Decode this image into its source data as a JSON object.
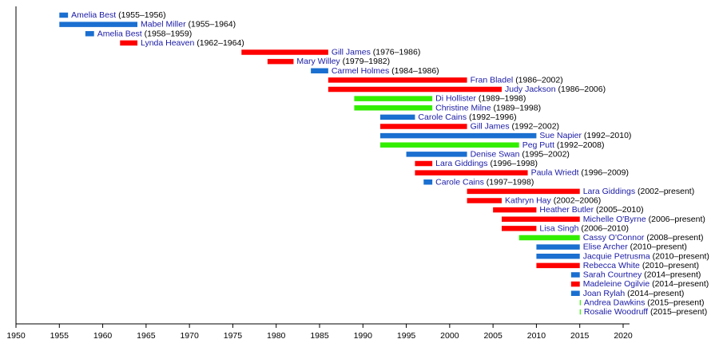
{
  "chart_data": {
    "type": "timeline",
    "xlim": [
      1950,
      2020
    ],
    "xticks": [
      1950,
      1955,
      1960,
      1965,
      1970,
      1975,
      1980,
      1985,
      1990,
      1995,
      2000,
      2005,
      2010,
      2015,
      2020
    ],
    "rows": [
      {
        "name": "Amelia Best",
        "period": "(1955–1956)",
        "start": 1955,
        "end": 1956,
        "color": "#1a6fd0"
      },
      {
        "name": "Mabel Miller",
        "period": "(1955–1964)",
        "start": 1955,
        "end": 1964,
        "color": "#1a6fd0"
      },
      {
        "name": "Amelia Best",
        "period": "(1958–1959)",
        "start": 1958,
        "end": 1959,
        "color": "#1a6fd0"
      },
      {
        "name": "Lynda Heaven",
        "period": "(1962–1964)",
        "start": 1962,
        "end": 1964,
        "color": "#ff0000"
      },
      {
        "name": "Gill James",
        "period": "(1976–1986)",
        "start": 1976,
        "end": 1986,
        "color": "#ff0000"
      },
      {
        "name": "Mary Willey",
        "period": "(1979–1982)",
        "start": 1979,
        "end": 1982,
        "color": "#ff0000"
      },
      {
        "name": "Carmel Holmes",
        "period": "(1984–1986)",
        "start": 1984,
        "end": 1986,
        "color": "#1a6fd0"
      },
      {
        "name": "Fran Bladel",
        "period": "(1986–2002)",
        "start": 1986,
        "end": 2002,
        "color": "#ff0000"
      },
      {
        "name": "Judy Jackson",
        "period": "(1986–2006)",
        "start": 1986,
        "end": 2006,
        "color": "#ff0000"
      },
      {
        "name": "Di Hollister",
        "period": "(1989–1998)",
        "start": 1989,
        "end": 1998,
        "color": "#33ee00"
      },
      {
        "name": "Christine Milne",
        "period": "(1989–1998)",
        "start": 1989,
        "end": 1998,
        "color": "#33ee00"
      },
      {
        "name": "Carole Cains",
        "period": "(1992–1996)",
        "start": 1992,
        "end": 1996,
        "color": "#1a6fd0"
      },
      {
        "name": "Gill James",
        "period": "(1992–2002)",
        "start": 1992,
        "end": 2002,
        "color": "#ff0000"
      },
      {
        "name": "Sue Napier",
        "period": "(1992–2010)",
        "start": 1992,
        "end": 2010,
        "color": "#1a6fd0"
      },
      {
        "name": "Peg Putt",
        "period": "(1992–2008)",
        "start": 1992,
        "end": 2008,
        "color": "#33ee00"
      },
      {
        "name": "Denise Swan",
        "period": "(1995–2002)",
        "start": 1995,
        "end": 2002,
        "color": "#1a6fd0"
      },
      {
        "name": "Lara Giddings",
        "period": "(1996–1998)",
        "start": 1996,
        "end": 1998,
        "color": "#ff0000"
      },
      {
        "name": "Paula Wriedt",
        "period": "(1996–2009)",
        "start": 1996,
        "end": 2009,
        "color": "#ff0000"
      },
      {
        "name": "Carole Cains",
        "period": "(1997–1998)",
        "start": 1997,
        "end": 1998,
        "color": "#1a6fd0"
      },
      {
        "name": "Lara Giddings",
        "period": "(2002–present)",
        "start": 2002,
        "end": 2015,
        "color": "#ff0000"
      },
      {
        "name": "Kathryn Hay",
        "period": "(2002–2006)",
        "start": 2002,
        "end": 2006,
        "color": "#ff0000"
      },
      {
        "name": "Heather Butler",
        "period": "(2005–2010)",
        "start": 2005,
        "end": 2010,
        "color": "#ff0000"
      },
      {
        "name": "Michelle O'Byrne",
        "period": "(2006–present)",
        "start": 2006,
        "end": 2015,
        "color": "#ff0000"
      },
      {
        "name": "Lisa Singh",
        "period": "(2006–2010)",
        "start": 2006,
        "end": 2010,
        "color": "#ff0000"
      },
      {
        "name": "Cassy O'Connor",
        "period": "(2008–present)",
        "start": 2008,
        "end": 2015,
        "color": "#33ee00"
      },
      {
        "name": "Elise Archer",
        "period": "(2010–present)",
        "start": 2010,
        "end": 2015,
        "color": "#1a6fd0"
      },
      {
        "name": "Jacquie Petrusma",
        "period": "(2010–present)",
        "start": 2010,
        "end": 2015,
        "color": "#1a6fd0"
      },
      {
        "name": "Rebecca White",
        "period": "(2010–present)",
        "start": 2010,
        "end": 2015,
        "color": "#ff0000"
      },
      {
        "name": "Sarah Courtney",
        "period": "(2014–present)",
        "start": 2014,
        "end": 2015,
        "color": "#1a6fd0"
      },
      {
        "name": "Madeleine Ogilvie",
        "period": "(2014–present)",
        "start": 2014,
        "end": 2015,
        "color": "#ff0000"
      },
      {
        "name": "Joan Rylah",
        "period": "(2014–present)",
        "start": 2014,
        "end": 2015,
        "color": "#1a6fd0"
      },
      {
        "name": "Andrea Dawkins",
        "period": "(2015–present)",
        "start": 2015,
        "end": 2015,
        "color": "#33ee00"
      },
      {
        "name": "Rosalie Woodruff",
        "period": "(2015–present)",
        "start": 2015,
        "end": 2015,
        "color": "#33ee00"
      }
    ]
  }
}
